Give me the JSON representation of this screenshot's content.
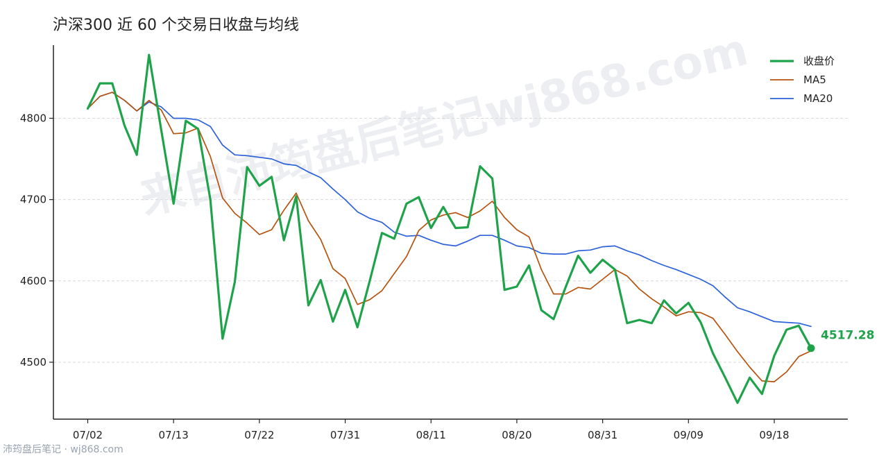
{
  "chart_data": {
    "type": "line",
    "title": "沪深300 近 60 个交易日收盘与均线",
    "xlabel": "",
    "ylabel": "",
    "x_ticks": [
      "07/02",
      "07/13",
      "07/22",
      "07/31",
      "08/11",
      "08/20",
      "08/31",
      "09/09",
      "09/18"
    ],
    "x_tick_indices": [
      0,
      7,
      14,
      21,
      28,
      35,
      42,
      49,
      56
    ],
    "y_ticks": [
      4500,
      4600,
      4700,
      4800
    ],
    "ylim": [
      4430,
      4890
    ],
    "xlim": [
      -2.8,
      62
    ],
    "grid": "horizontal dashed",
    "legend_position": "top-right",
    "series": [
      {
        "name": "收盘价",
        "color": "#1fa34a",
        "values": [
          4812,
          4843,
          4843,
          4791,
          4755,
          4878,
          4785,
          4695,
          4797,
          4787,
          4700,
          4529,
          4599,
          4740,
          4717,
          4728,
          4650,
          4704,
          4570,
          4601,
          4550,
          4589,
          4543,
          4600,
          4659,
          4652,
          4695,
          4703,
          4665,
          4691,
          4665,
          4666,
          4741,
          4726,
          4589,
          4593,
          4619,
          4564,
          4553,
          4593,
          4631,
          4610,
          4626,
          4614,
          4548,
          4552,
          4548,
          4576,
          4560,
          4573,
          4549,
          4511,
          4481,
          4450,
          4481,
          4461,
          4508,
          4540,
          4545,
          4517.28
        ]
      },
      {
        "name": "MA5",
        "color": "#b5530f",
        "values": [
          4812,
          4827,
          4832,
          4822,
          4809,
          4822,
          4810,
          4781,
          4782,
          4788,
          4753,
          4702,
          4683,
          4671,
          4657,
          4663,
          4687,
          4708,
          4674,
          4651,
          4615,
          4603,
          4571,
          4577,
          4588,
          4609,
          4630,
          4662,
          4675,
          4681,
          4684,
          4678,
          4686,
          4698,
          4678,
          4663,
          4654,
          4614,
          4584,
          4584,
          4592,
          4590,
          4602,
          4614,
          4606,
          4590,
          4578,
          4568,
          4557,
          4562,
          4561,
          4554,
          4534,
          4513,
          4494,
          4477,
          4476,
          4488,
          4507,
          4514
        ]
      },
      {
        "name": "MA20",
        "color": "#2b62d9",
        "values": [
          4812,
          4827,
          4832,
          4822,
          4809,
          4820,
          4814,
          4800,
          4800,
          4798,
          4790,
          4767,
          4755,
          4754,
          4752,
          4750,
          4744,
          4742,
          4734,
          4727,
          4713,
          4700,
          4685,
          4677,
          4672,
          4660,
          4655,
          4656,
          4650,
          4645,
          4643,
          4649,
          4656,
          4656,
          4650,
          4643,
          4641,
          4634,
          4633,
          4633,
          4637,
          4638,
          4642,
          4643,
          4637,
          4632,
          4625,
          4619,
          4614,
          4608,
          4602,
          4594,
          4580,
          4567,
          4562,
          4556,
          4550,
          4549,
          4548,
          4544
        ]
      }
    ],
    "last_value_label": "4517.28"
  },
  "watermark": {
    "main": "来自沛筠盘后笔记wj868.com",
    "footer": "沛筠盘后笔记 · wj868.com"
  }
}
